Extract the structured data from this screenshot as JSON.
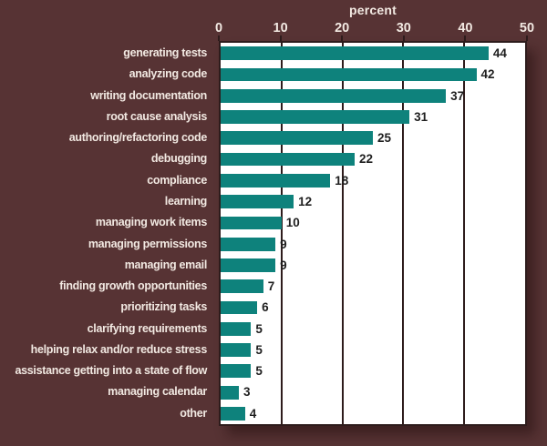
{
  "colors": {
    "background": "#573334",
    "bar": "#0E827C",
    "plot_background": "#FFFFFF",
    "gridline": "#2E1C1C",
    "label_text": "#F2E9E2",
    "value_text": "#1E1E1E"
  },
  "chart_data": {
    "type": "bar",
    "orientation": "horizontal",
    "title": "percent",
    "xlabel": "percent",
    "ylabel": "",
    "xlim": [
      0,
      50
    ],
    "xticks": [
      0,
      10,
      20,
      30,
      40,
      50
    ],
    "grid": true,
    "value_labels_shown": true,
    "legend": "none",
    "categories": [
      "generating tests",
      "analyzing code",
      "writing documentation",
      "root cause analysis",
      "authoring/refactoring code",
      "debugging",
      "compliance",
      "learning",
      "managing work items",
      "managing permissions",
      "managing email",
      "finding growth opportunities",
      "prioritizing tasks",
      "clarifying requirements",
      "helping relax and/or reduce stress",
      "assistance getting into a state of flow",
      "managing calendar",
      "other"
    ],
    "values": [
      44,
      42,
      37,
      31,
      25,
      22,
      18,
      12,
      10,
      9,
      9,
      7,
      6,
      5,
      5,
      5,
      3,
      4
    ]
  }
}
